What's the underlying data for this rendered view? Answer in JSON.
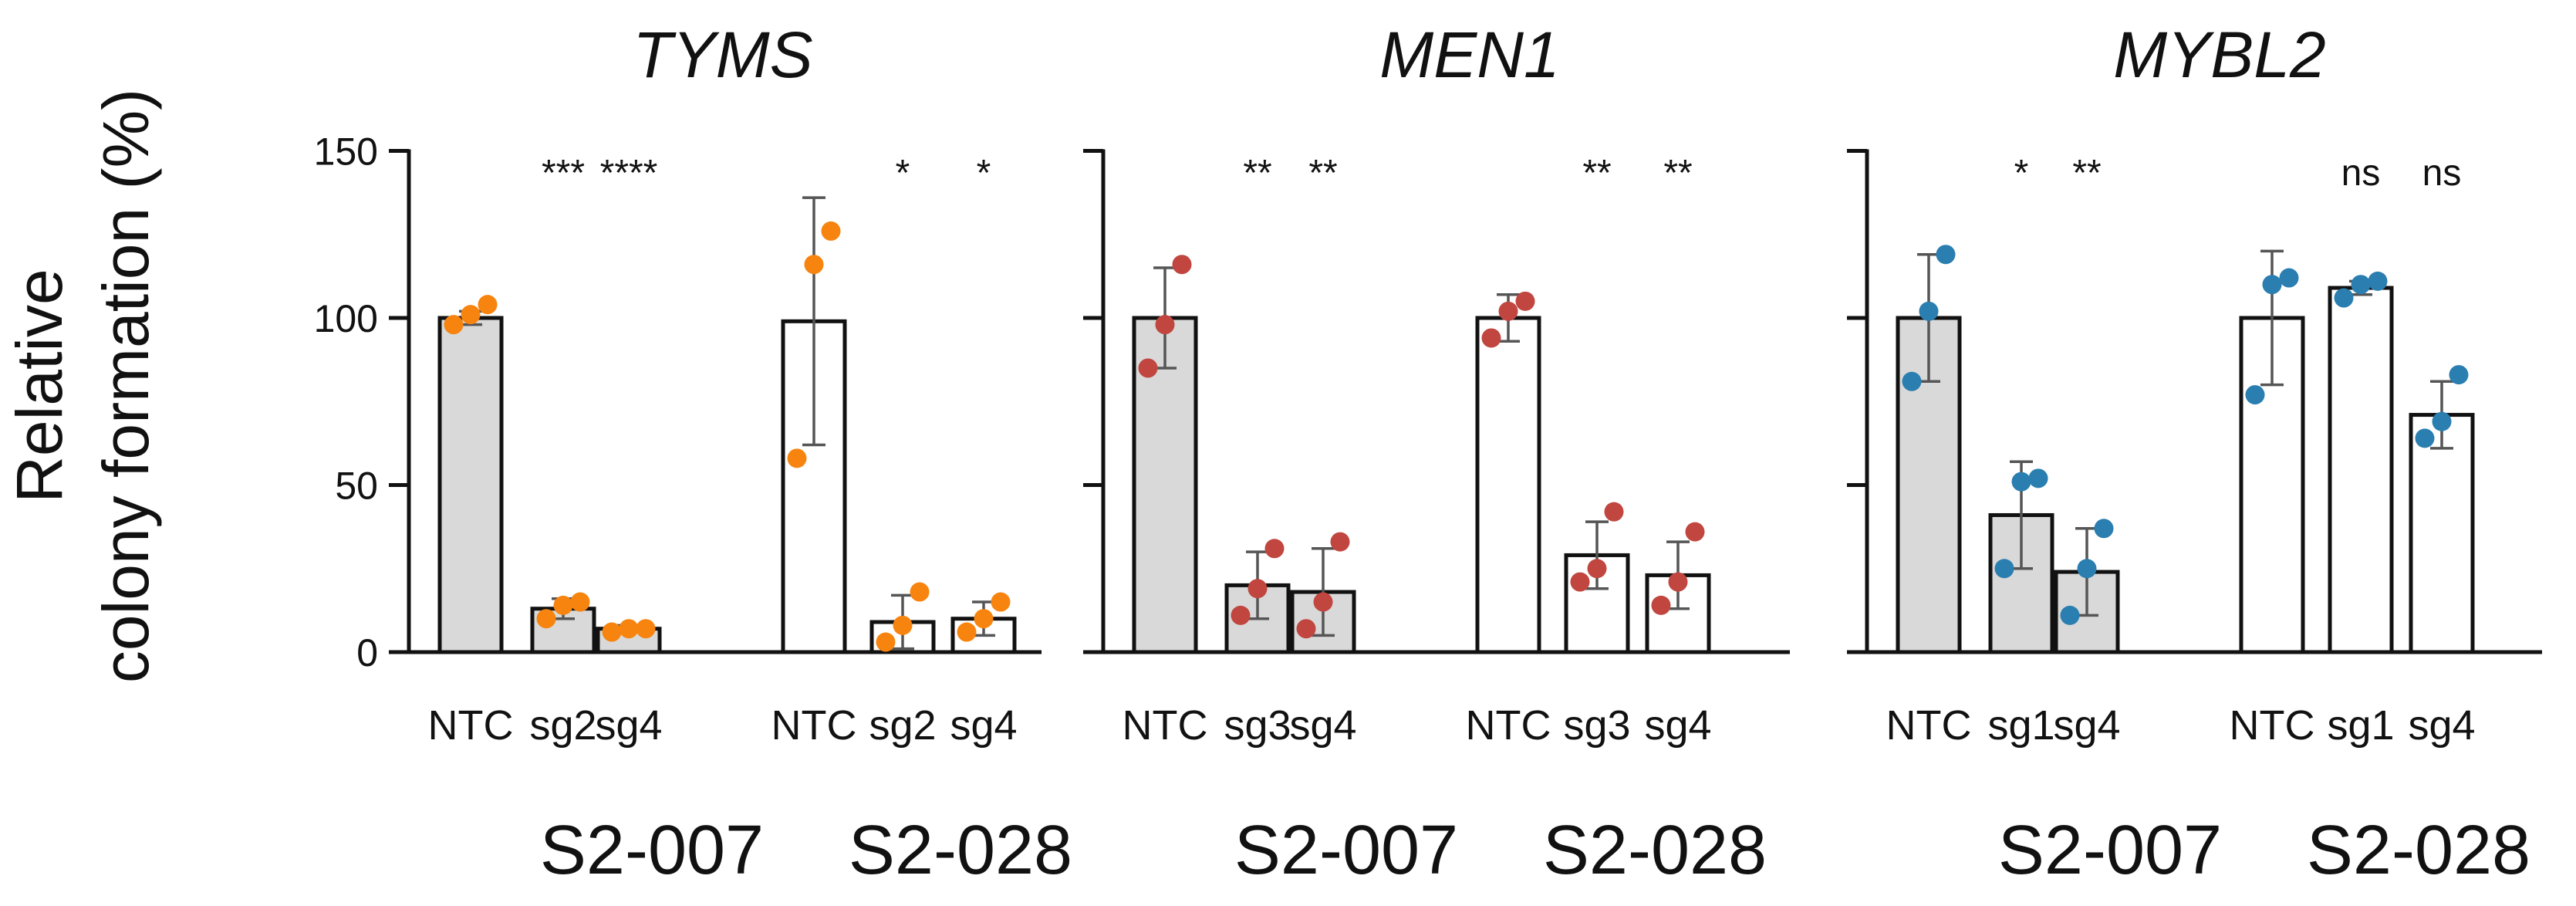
{
  "chart_data": {
    "type": "bar",
    "ylabel_line1": "Relative",
    "ylabel_line2": "colony formation   (%)",
    "ylim": [
      0,
      150
    ],
    "yticks": [
      0,
      50,
      100,
      150
    ],
    "grid": false,
    "legend": "none",
    "colors": {
      "bar_fill_S2_007": "#d9d9d9",
      "bar_fill_S2_028": "#ffffff",
      "edge": "#111111",
      "error_bar": "#555555"
    },
    "panels": [
      {
        "title": "TYMS",
        "point_color": "#f7840f",
        "groups": [
          {
            "name": "S2-007",
            "bars": [
              {
                "label": "NTC",
                "mean": 100,
                "sd": 2,
                "points": [
                  98,
                  101,
                  104
                ],
                "sig": ""
              },
              {
                "label": "sg2",
                "mean": 13,
                "sd": 3,
                "points": [
                  10,
                  14,
                  15
                ],
                "sig": "***"
              },
              {
                "label": "sg4",
                "mean": 7,
                "sd": 1,
                "points": [
                  6,
                  7,
                  7
                ],
                "sig": "****"
              }
            ]
          },
          {
            "name": "S2-028",
            "bars": [
              {
                "label": "NTC",
                "mean": 99,
                "sd": 37,
                "points": [
                  58,
                  116,
                  126
                ],
                "sig": ""
              },
              {
                "label": "sg2",
                "mean": 9,
                "sd": 8,
                "points": [
                  3,
                  8,
                  18
                ],
                "sig": "*"
              },
              {
                "label": "sg4",
                "mean": 10,
                "sd": 5,
                "points": [
                  6,
                  10,
                  15
                ],
                "sig": "*"
              }
            ]
          }
        ]
      },
      {
        "title": "MEN1",
        "point_color": "#c0463f",
        "groups": [
          {
            "name": "S2-007",
            "bars": [
              {
                "label": "NTC",
                "mean": 100,
                "sd": 15,
                "points": [
                  85,
                  98,
                  116
                ],
                "sig": ""
              },
              {
                "label": "sg3",
                "mean": 20,
                "sd": 10,
                "points": [
                  11,
                  19,
                  31
                ],
                "sig": "**"
              },
              {
                "label": "sg4",
                "mean": 18,
                "sd": 13,
                "points": [
                  7,
                  15,
                  33
                ],
                "sig": "**"
              }
            ]
          },
          {
            "name": "S2-028",
            "bars": [
              {
                "label": "NTC",
                "mean": 100,
                "sd": 7,
                "points": [
                  94,
                  102,
                  105
                ],
                "sig": ""
              },
              {
                "label": "sg3",
                "mean": 29,
                "sd": 10,
                "points": [
                  21,
                  25,
                  42
                ],
                "sig": "**"
              },
              {
                "label": "sg4",
                "mean": 23,
                "sd": 10,
                "points": [
                  14,
                  21,
                  36
                ],
                "sig": "**"
              }
            ]
          }
        ]
      },
      {
        "title": "MYBL2",
        "point_color": "#2a7eb0",
        "groups": [
          {
            "name": "S2-007",
            "bars": [
              {
                "label": "NTC",
                "mean": 100,
                "sd": 19,
                "points": [
                  81,
                  102,
                  119
                ],
                "sig": ""
              },
              {
                "label": "sg1",
                "mean": 41,
                "sd": 16,
                "points": [
                  25,
                  51,
                  52
                ],
                "sig": "*"
              },
              {
                "label": "sg4",
                "mean": 24,
                "sd": 13,
                "points": [
                  11,
                  25,
                  37
                ],
                "sig": "**"
              }
            ]
          },
          {
            "name": "S2-028",
            "bars": [
              {
                "label": "NTC",
                "mean": 100,
                "sd": 20,
                "points": [
                  77,
                  110,
                  112
                ],
                "sig": ""
              },
              {
                "label": "sg1",
                "mean": 109,
                "sd": 2,
                "points": [
                  106,
                  110,
                  111
                ],
                "sig": "ns"
              },
              {
                "label": "sg4",
                "mean": 71,
                "sd": 10,
                "points": [
                  64,
                  69,
                  83
                ],
                "sig": "ns"
              }
            ]
          }
        ]
      }
    ]
  }
}
